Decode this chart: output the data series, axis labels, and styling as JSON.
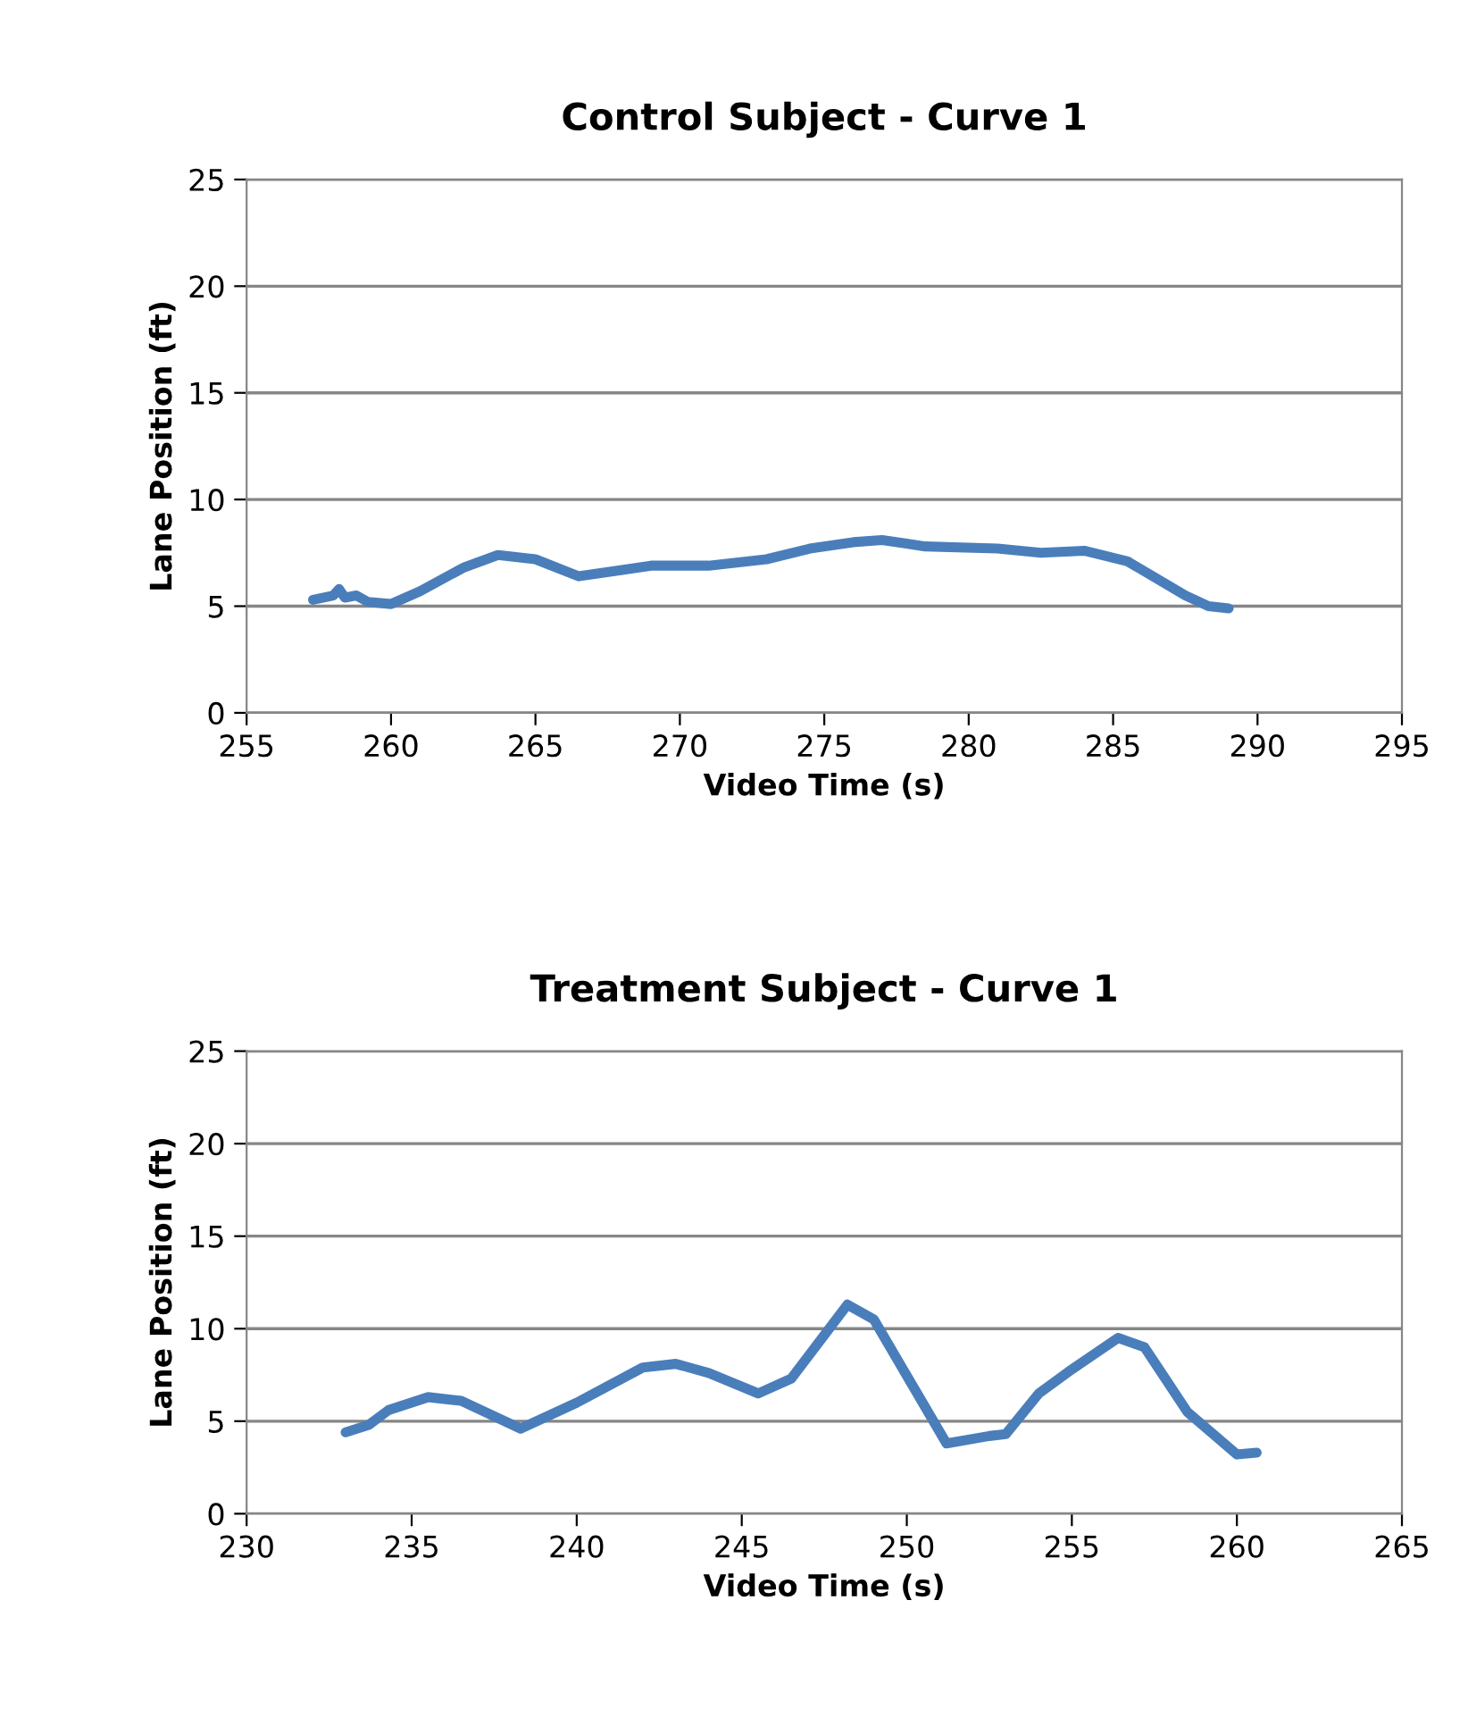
{
  "chart_data": [
    {
      "type": "line",
      "title": "Control Subject - Curve 1",
      "xlabel": "Video Time (s)",
      "ylabel": "Lane Position (ft)",
      "xlim": [
        255,
        295
      ],
      "xticks": [
        255,
        260,
        265,
        270,
        275,
        280,
        285,
        290,
        295
      ],
      "ylim": [
        0,
        25
      ],
      "yticks": [
        0,
        5,
        10,
        15,
        20,
        25
      ],
      "grid": "y",
      "legend": false,
      "marker": "none",
      "line_style": "solid",
      "series": [
        {
          "color": "#4a7ebb",
          "x": [
            257.3,
            258,
            258.2,
            258.4,
            258.8,
            259.2,
            260,
            261,
            262.5,
            263.7,
            265,
            266.5,
            268,
            269,
            271,
            273,
            274.5,
            276,
            277,
            278.5,
            281,
            282.5,
            284,
            285.5,
            287.5,
            288.3,
            289
          ],
          "values": [
            5.3,
            5.5,
            5.8,
            5.4,
            5.5,
            5.2,
            5.1,
            5.7,
            6.8,
            7.4,
            7.2,
            6.4,
            6.7,
            6.9,
            6.9,
            7.2,
            7.7,
            8.0,
            8.1,
            7.8,
            7.7,
            7.5,
            7.6,
            7.1,
            5.5,
            5.0,
            4.9
          ]
        }
      ]
    },
    {
      "type": "line",
      "title": "Treatment Subject - Curve 1",
      "xlabel": "Video Time (s)",
      "ylabel": "Lane Position (ft)",
      "xlim": [
        230,
        265
      ],
      "xticks": [
        230,
        235,
        240,
        245,
        250,
        255,
        260,
        265
      ],
      "ylim": [
        0,
        25
      ],
      "yticks": [
        0,
        5,
        10,
        15,
        20,
        25
      ],
      "grid": "y",
      "legend": false,
      "marker": "none",
      "line_style": "solid",
      "series": [
        {
          "color": "#4a7ebb",
          "x": [
            233,
            233.7,
            234.3,
            235.5,
            236.5,
            238.3,
            240,
            242,
            243,
            244,
            245.5,
            246.5,
            248.2,
            249,
            251.2,
            252.5,
            253,
            254,
            255,
            256.4,
            257.2,
            258.5,
            260,
            260.6
          ],
          "values": [
            4.4,
            4.8,
            5.6,
            6.3,
            6.1,
            4.6,
            6.0,
            7.9,
            8.1,
            7.6,
            6.5,
            7.3,
            11.3,
            10.5,
            3.8,
            4.2,
            4.3,
            6.5,
            7.8,
            9.5,
            9.0,
            5.5,
            3.2,
            3.3
          ]
        }
      ]
    }
  ]
}
